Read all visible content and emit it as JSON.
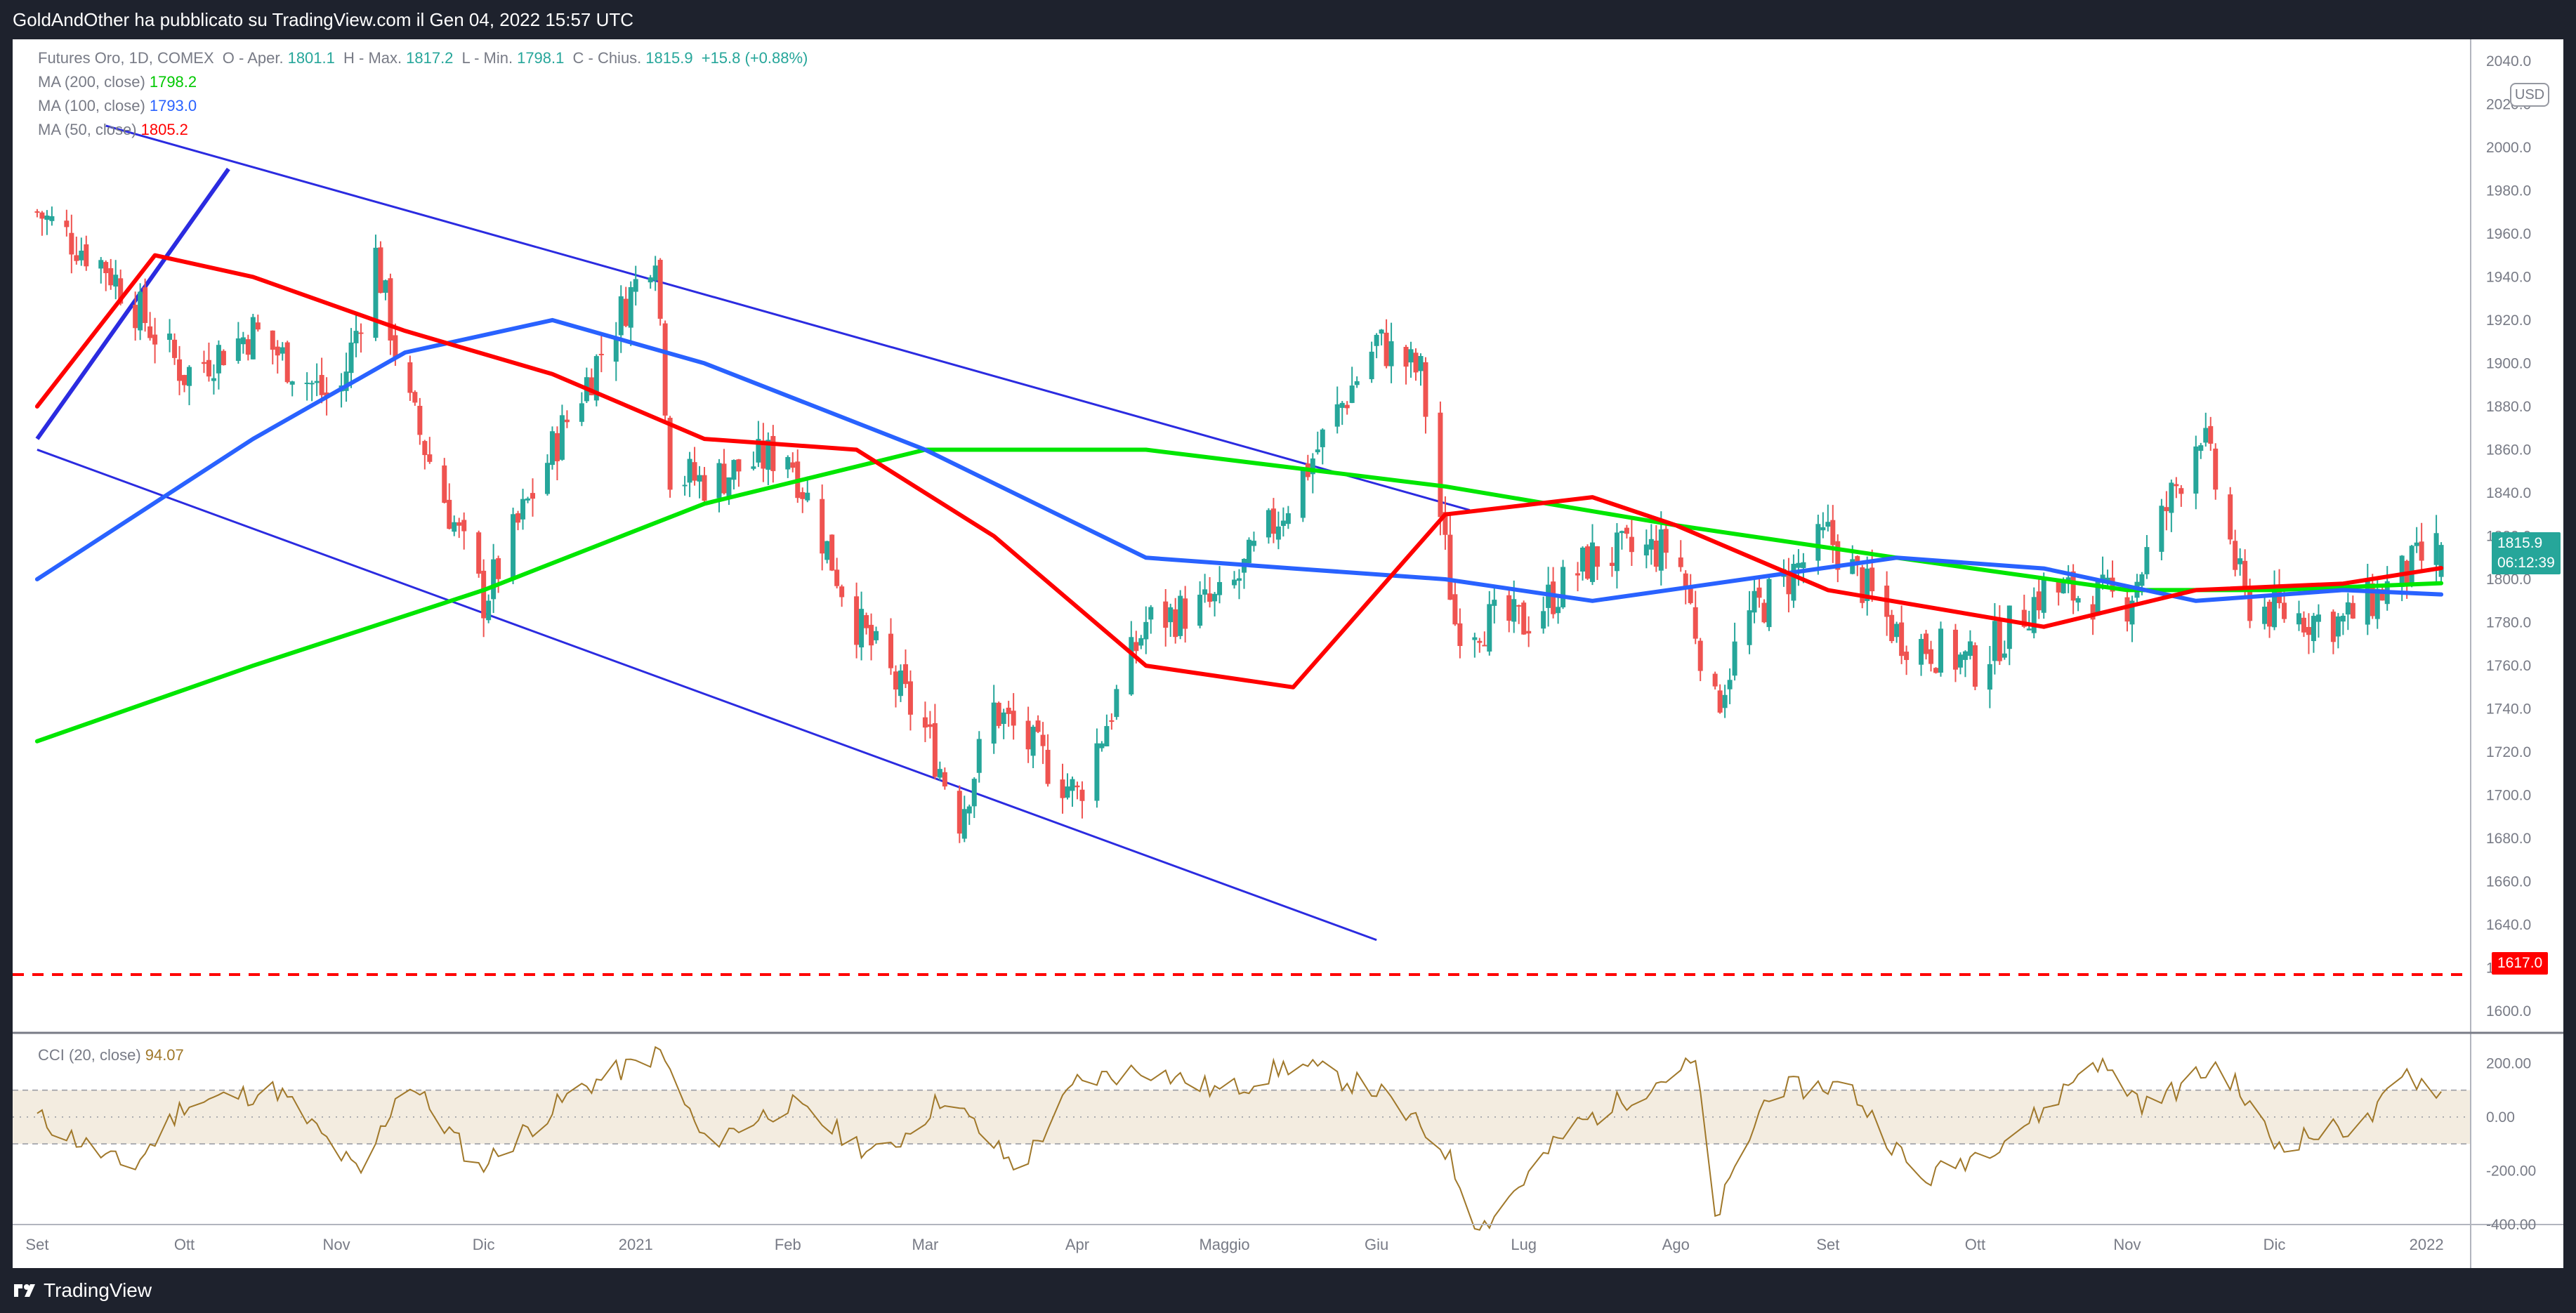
{
  "header": {
    "publisher_text": "GoldAndOther ha pubblicato su TradingView.com il Gen 04, 2022 15:57 UTC"
  },
  "footer": {
    "brand": "TradingView"
  },
  "legend": {
    "symbol": "Futures Oro, 1D, COMEX",
    "open_label": "O - Aper.",
    "open": "1801.1",
    "high_label": "H - Max.",
    "high": "1817.2",
    "low_label": "L - Min.",
    "low": "1798.1",
    "close_label": "C - Chius.",
    "close": "1815.9",
    "change": "+15.8 (+0.88%)",
    "ma200_label": "MA (200, close)",
    "ma200": "1798.2",
    "ma100_label": "MA (100, close)",
    "ma100": "1793.0",
    "ma50_label": "MA (50, close)",
    "ma50": "1805.2",
    "cci_label": "CCI (20, close)",
    "cci": "94.07"
  },
  "price_tags": {
    "last_price": "1815.9",
    "countdown": "06:12:39",
    "support_level": "1617.0"
  },
  "currency": "USD",
  "colors": {
    "bull": "#26a69a",
    "bear": "#ef5350",
    "ma200": "#00e600",
    "ma100": "#2962ff",
    "ma50": "#ff0000",
    "channel": "#2b2be0",
    "support": "#ff0000",
    "cci": "#a0782a",
    "cci_band": "#f3ece0"
  },
  "chart_data": [
    {
      "type": "line",
      "subtype": "candlestick_with_moving_averages",
      "ylim": [
        1590,
        2050
      ],
      "y_ticks": [
        1600,
        1620,
        1640,
        1660,
        1680,
        1700,
        1720,
        1740,
        1760,
        1780,
        1800,
        1820,
        1840,
        1860,
        1880,
        1900,
        1920,
        1940,
        1960,
        1980,
        2000,
        2020,
        2040
      ],
      "y_tick_labels": [
        "1600.0",
        "1620.0",
        "1640.0",
        "1660.0",
        "1680.0",
        "1700.0",
        "1720.0",
        "1740.0",
        "1760.0",
        "1780.0",
        "1800.0",
        "1820.0",
        "1840.0",
        "1860.0",
        "1880.0",
        "1900.0",
        "1920.0",
        "1940.0",
        "1960.0",
        "1980.0",
        "2000.0",
        "2020.0",
        "2040.0"
      ],
      "x_tick_labels": [
        "Set",
        "Ott",
        "Nov",
        "Dic",
        "2021",
        "Feb",
        "Mar",
        "Apr",
        "Maggio",
        "Giu",
        "Lug",
        "Ago",
        "Set",
        "Ott",
        "Nov",
        "Dic",
        "2022"
      ],
      "x_ticks": [
        "2020-09",
        "2020-10",
        "2020-11",
        "2020-12",
        "2021-01",
        "2021-02",
        "2021-03",
        "2021-04",
        "2021-05",
        "2021-06",
        "2021-07",
        "2021-08",
        "2021-09",
        "2021-10",
        "2021-11",
        "2021-12",
        "2022-01"
      ],
      "closes": {
        "dates": [
          "2020-09-01",
          "2020-09-15",
          "2020-10-01",
          "2020-10-15",
          "2020-11-01",
          "2020-11-09",
          "2020-11-15",
          "2020-12-01",
          "2020-12-15",
          "2021-01-05",
          "2021-01-08",
          "2021-01-15",
          "2021-02-01",
          "2021-02-15",
          "2021-03-01",
          "2021-03-08",
          "2021-03-15",
          "2021-04-01",
          "2021-04-15",
          "2021-05-01",
          "2021-05-15",
          "2021-06-01",
          "2021-06-10",
          "2021-06-17",
          "2021-07-01",
          "2021-07-15",
          "2021-08-01",
          "2021-08-09",
          "2021-08-15",
          "2021-09-01",
          "2021-09-15",
          "2021-10-01",
          "2021-10-15",
          "2021-11-01",
          "2021-11-16",
          "2021-11-25",
          "2021-12-01",
          "2021-12-15",
          "2022-01-04"
        ],
        "values": [
          1970,
          1945,
          1895,
          1915,
          1880,
          1950,
          1885,
          1790,
          1860,
          1955,
          1850,
          1845,
          1860,
          1780,
          1730,
          1690,
          1740,
          1700,
          1780,
          1790,
          1840,
          1910,
          1895,
          1780,
          1780,
          1810,
          1815,
          1740,
          1780,
          1820,
          1775,
          1760,
          1795,
          1790,
          1870,
          1790,
          1785,
          1780,
          1815.9
        ]
      },
      "last": {
        "open": 1801.1,
        "high": 1817.2,
        "low": 1798.1,
        "close": 1815.9
      },
      "series": [
        {
          "name": "MA (200, close)",
          "color": "#00e600",
          "x": [
            "2020-09-01",
            "2020-10-15",
            "2020-12-01",
            "2021-01-15",
            "2021-03-01",
            "2021-04-15",
            "2021-06-15",
            "2021-08-01",
            "2021-09-15",
            "2021-11-01",
            "2021-12-01",
            "2022-01-04"
          ],
          "values": [
            1725,
            1760,
            1795,
            1835,
            1860,
            1860,
            1843,
            1825,
            1810,
            1795,
            1795,
            1798.2
          ]
        },
        {
          "name": "MA (100, close)",
          "color": "#2962ff",
          "x": [
            "2020-09-01",
            "2020-10-15",
            "2020-11-15",
            "2020-12-15",
            "2021-01-15",
            "2021-03-01",
            "2021-04-15",
            "2021-05-15",
            "2021-06-15",
            "2021-07-15",
            "2021-08-15",
            "2021-09-15",
            "2021-10-15",
            "2021-11-15",
            "2021-12-15",
            "2022-01-04"
          ],
          "values": [
            1800,
            1865,
            1905,
            1920,
            1900,
            1860,
            1810,
            1805,
            1800,
            1790,
            1800,
            1810,
            1805,
            1790,
            1795,
            1793.0
          ]
        },
        {
          "name": "MA (50, close)",
          "color": "#ff0000",
          "x": [
            "2020-09-01",
            "2020-09-25",
            "2020-10-15",
            "2020-11-15",
            "2020-12-15",
            "2021-01-15",
            "2021-02-15",
            "2021-03-15",
            "2021-04-15",
            "2021-05-15",
            "2021-06-15",
            "2021-07-15",
            "2021-08-01",
            "2021-09-01",
            "2021-10-15",
            "2021-11-15",
            "2021-12-15",
            "2022-01-04"
          ],
          "values": [
            1880,
            1950,
            1940,
            1915,
            1895,
            1865,
            1860,
            1820,
            1760,
            1750,
            1830,
            1838,
            1825,
            1795,
            1778,
            1795,
            1798,
            1805.2
          ]
        }
      ],
      "channel": {
        "upper": [
          [
            "2020-09-15",
            2010
          ],
          [
            "2021-06-20",
            1832
          ]
        ],
        "lower": [
          [
            "2020-09-01",
            1860
          ],
          [
            "2021-06-01",
            1633
          ]
        ],
        "steep": [
          [
            "2020-09-01",
            1865
          ],
          [
            "2020-10-10",
            1990
          ]
        ]
      },
      "support_line": 1617.0
    },
    {
      "type": "line",
      "title": "CCI (20, close)",
      "ylim": [
        -400,
        300
      ],
      "y_ticks": [
        -400,
        -200,
        0,
        200
      ],
      "y_tick_labels": [
        "-400.00",
        "-200.00",
        "0.00",
        "200.00"
      ],
      "band": [
        -100,
        100
      ],
      "series": [
        {
          "name": "CCI",
          "x": [
            "2020-09-01",
            "2020-09-20",
            "2020-10-01",
            "2020-10-20",
            "2020-11-06",
            "2020-11-15",
            "2020-11-30",
            "2020-12-20",
            "2021-01-06",
            "2021-01-15",
            "2021-02-01",
            "2021-02-20",
            "2021-03-05",
            "2021-03-20",
            "2021-04-01",
            "2021-04-15",
            "2021-05-01",
            "2021-05-15",
            "2021-06-01",
            "2021-06-15",
            "2021-06-22",
            "2021-07-10",
            "2021-07-30",
            "2021-08-05",
            "2021-08-09",
            "2021-08-20",
            "2021-09-05",
            "2021-09-20",
            "2021-10-05",
            "2021-10-15",
            "2021-10-25",
            "2021-11-05",
            "2021-11-20",
            "2021-12-01",
            "2021-12-20",
            "2021-12-28",
            "2022-01-04"
          ],
          "values": [
            0,
            -200,
            50,
            100,
            -220,
            150,
            -190,
            100,
            240,
            -100,
            50,
            -150,
            80,
            -200,
            130,
            180,
            90,
            200,
            100,
            -120,
            -420,
            -50,
            150,
            200,
            -380,
            100,
            120,
            -240,
            -100,
            20,
            220,
            40,
            200,
            -100,
            -20,
            160,
            94.07
          ]
        }
      ]
    }
  ]
}
